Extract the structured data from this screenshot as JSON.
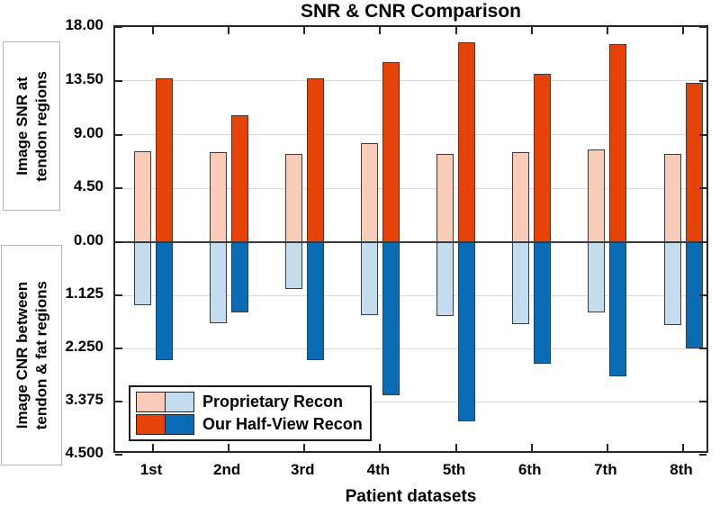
{
  "chart_data": {
    "type": "bar",
    "title": "SNR & CNR Comparison",
    "xlabel": "Patient datasets",
    "categories": [
      "1st",
      "2nd",
      "3rd",
      "4th",
      "5th",
      "6th",
      "7th",
      "8th"
    ],
    "grid": true,
    "legend_position": "bottom-left",
    "top_axis": {
      "label_line1": "Image SNR at",
      "label_line2": "tendon regions",
      "range": [
        0,
        18
      ],
      "direction": "up",
      "ticks": [
        {
          "v": 0,
          "label": "0.00"
        },
        {
          "v": 4.5,
          "label": "4.50"
        },
        {
          "v": 9,
          "label": "9.00"
        },
        {
          "v": 13.5,
          "label": "13.50"
        },
        {
          "v": 18,
          "label": "18.00"
        }
      ]
    },
    "bottom_axis": {
      "label_line1": "Image CNR between",
      "label_line2": "tendon & fat regions",
      "range": [
        0,
        4.5
      ],
      "direction": "down",
      "ticks": [
        {
          "v": 1.125,
          "label": "1.125"
        },
        {
          "v": 2.25,
          "label": "2.250"
        },
        {
          "v": 3.375,
          "label": "3.375"
        },
        {
          "v": 4.5,
          "label": "4.500"
        }
      ]
    },
    "series": [
      {
        "name": "Proprietary Recon",
        "snr_color": "#F8CCB8",
        "cnr_color": "#C3DCEE",
        "snr": [
          7.6,
          7.55,
          7.35,
          8.25,
          7.35,
          7.5,
          7.75,
          7.4
        ],
        "cnr": [
          1.33,
          1.71,
          1.0,
          1.54,
          1.57,
          1.74,
          1.48,
          1.76
        ]
      },
      {
        "name": "Our Half-View Recon",
        "snr_color": "#E64309",
        "cnr_color": "#0A6CB5",
        "snr": [
          13.7,
          10.6,
          13.7,
          15.1,
          16.7,
          14.1,
          16.6,
          13.3
        ],
        "cnr": [
          2.5,
          1.48,
          2.5,
          3.25,
          3.79,
          2.58,
          2.85,
          2.25
        ]
      }
    ],
    "colors": {
      "grid": "#d9d9d9",
      "axis": "#262626",
      "zero_line": "#3a3a3a",
      "bar_border": "#3a3a3a",
      "background": "#ffffff",
      "text": "#000000"
    }
  }
}
